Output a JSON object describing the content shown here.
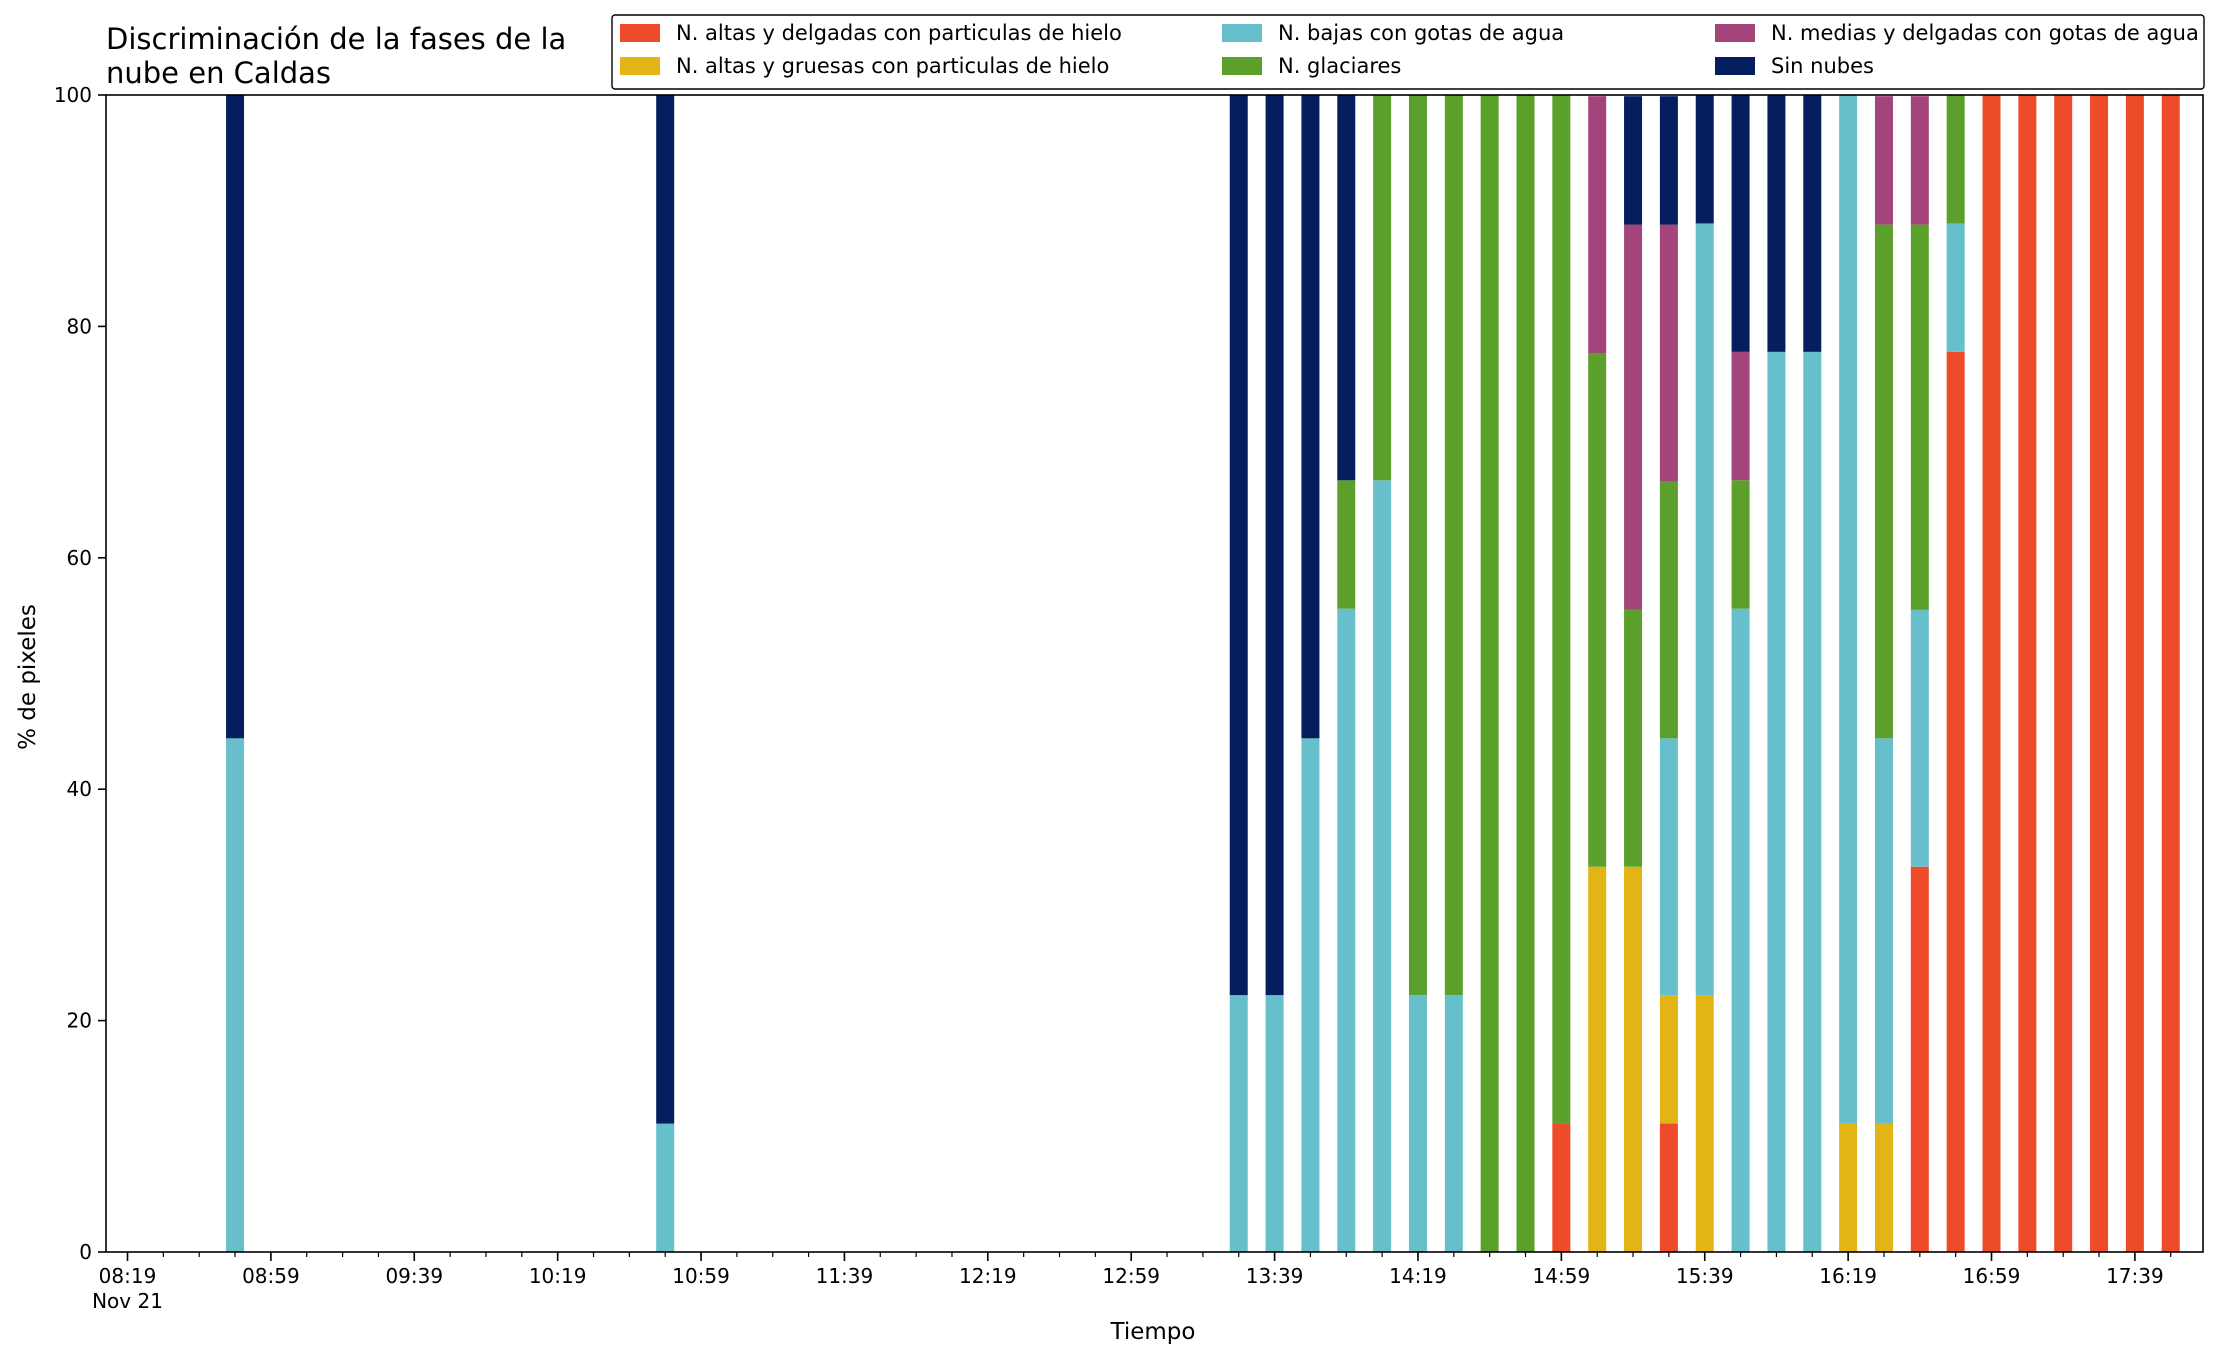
{
  "chart_data": {
    "type": "bar",
    "stacked": true,
    "title_lines": [
      "Discriminación de la fases de la",
      "nube en Caldas"
    ],
    "xlabel": "Tiempo",
    "ylabel": "% de pixeles",
    "ylim": [
      0,
      100
    ],
    "yticks": [
      "0",
      "20",
      "40",
      "60",
      "80",
      "100"
    ],
    "xlim_minutes": [
      "08:13",
      "17:58"
    ],
    "xticks": [
      {
        "time": "08:19",
        "label": "08:19",
        "sublabel": "Nov 21"
      },
      {
        "time": "08:59",
        "label": "08:59"
      },
      {
        "time": "09:39",
        "label": "09:39"
      },
      {
        "time": "10:19",
        "label": "10:19"
      },
      {
        "time": "10:59",
        "label": "10:59"
      },
      {
        "time": "11:39",
        "label": "11:39"
      },
      {
        "time": "12:19",
        "label": "12:19"
      },
      {
        "time": "12:59",
        "label": "12:59"
      },
      {
        "time": "13:39",
        "label": "13:39"
      },
      {
        "time": "14:19",
        "label": "14:19"
      },
      {
        "time": "14:59",
        "label": "14:59"
      },
      {
        "time": "15:39",
        "label": "15:39"
      },
      {
        "time": "16:19",
        "label": "16:19"
      },
      {
        "time": "16:59",
        "label": "16:59"
      },
      {
        "time": "17:39",
        "label": "17:39"
      }
    ],
    "minor_tick_step_minutes": 10,
    "grid": false,
    "legend_position": "top-right",
    "legend_columns": 3,
    "series_order": [
      "ice_thin",
      "ice_thick",
      "water_low",
      "glacier",
      "water_mid",
      "clear"
    ],
    "series": [
      {
        "key": "ice_thin",
        "name": "N. altas y delgadas con particulas de hielo",
        "color": "#ee4b2b"
      },
      {
        "key": "ice_thick",
        "name": "N. altas y gruesas con particulas de hielo",
        "color": "#e3b416"
      },
      {
        "key": "water_low",
        "name": "N. bajas con gotas de agua",
        "color": "#67bfcb"
      },
      {
        "key": "glacier",
        "name": "N. glaciares",
        "color": "#5ca02c"
      },
      {
        "key": "water_mid",
        "name": "N. medias y delgadas con gotas de agua",
        "color": "#a3457a"
      },
      {
        "key": "clear",
        "name": "Sin nubes",
        "color": "#041e5e"
      }
    ],
    "bars": [
      {
        "time": "08:49",
        "ice_thin": 0,
        "ice_thick": 0,
        "water_low": 44.4,
        "glacier": 0,
        "water_mid": 0,
        "clear": 55.6
      },
      {
        "time": "10:49",
        "ice_thin": 0,
        "ice_thick": 0,
        "water_low": 11.1,
        "glacier": 0,
        "water_mid": 0,
        "clear": 88.9
      },
      {
        "time": "13:29",
        "ice_thin": 0,
        "ice_thick": 0,
        "water_low": 22.2,
        "glacier": 0,
        "water_mid": 0,
        "clear": 77.8
      },
      {
        "time": "13:39",
        "ice_thin": 0,
        "ice_thick": 0,
        "water_low": 22.2,
        "glacier": 0,
        "water_mid": 0,
        "clear": 77.8
      },
      {
        "time": "13:49",
        "ice_thin": 0,
        "ice_thick": 0,
        "water_low": 44.4,
        "glacier": 0,
        "water_mid": 0,
        "clear": 55.6
      },
      {
        "time": "13:59",
        "ice_thin": 0,
        "ice_thick": 0,
        "water_low": 55.6,
        "glacier": 11.1,
        "water_mid": 0,
        "clear": 33.3
      },
      {
        "time": "14:09",
        "ice_thin": 0,
        "ice_thick": 0,
        "water_low": 66.7,
        "glacier": 33.3,
        "water_mid": 0,
        "clear": 0
      },
      {
        "time": "14:19",
        "ice_thin": 0,
        "ice_thick": 0,
        "water_low": 22.2,
        "glacier": 77.8,
        "water_mid": 0,
        "clear": 0
      },
      {
        "time": "14:29",
        "ice_thin": 0,
        "ice_thick": 0,
        "water_low": 22.2,
        "glacier": 77.8,
        "water_mid": 0,
        "clear": 0
      },
      {
        "time": "14:39",
        "ice_thin": 0,
        "ice_thick": 0,
        "water_low": 0,
        "glacier": 100,
        "water_mid": 0,
        "clear": 0
      },
      {
        "time": "14:49",
        "ice_thin": 0,
        "ice_thick": 0,
        "water_low": 0,
        "glacier": 100,
        "water_mid": 0,
        "clear": 0
      },
      {
        "time": "14:59",
        "ice_thin": 11.1,
        "ice_thick": 0,
        "water_low": 0,
        "glacier": 88.9,
        "water_mid": 0,
        "clear": 0
      },
      {
        "time": "15:09",
        "ice_thin": 0,
        "ice_thick": 33.3,
        "water_low": 0,
        "glacier": 44.4,
        "water_mid": 22.2,
        "clear": 0
      },
      {
        "time": "15:19",
        "ice_thin": 0,
        "ice_thick": 33.3,
        "water_low": 0,
        "glacier": 22.2,
        "water_mid": 33.3,
        "clear": 11.1
      },
      {
        "time": "15:29",
        "ice_thin": 11.1,
        "ice_thick": 11.1,
        "water_low": 22.2,
        "glacier": 22.2,
        "water_mid": 22.2,
        "clear": 11.1
      },
      {
        "time": "15:39",
        "ice_thin": 0,
        "ice_thick": 22.2,
        "water_low": 66.7,
        "glacier": 0,
        "water_mid": 0,
        "clear": 11.1
      },
      {
        "time": "15:49",
        "ice_thin": 0,
        "ice_thick": 0,
        "water_low": 55.6,
        "glacier": 11.1,
        "water_mid": 11.1,
        "clear": 22.2
      },
      {
        "time": "15:59",
        "ice_thin": 0,
        "ice_thick": 0,
        "water_low": 77.8,
        "glacier": 0,
        "water_mid": 0,
        "clear": 22.2
      },
      {
        "time": "16:09",
        "ice_thin": 0,
        "ice_thick": 0,
        "water_low": 77.8,
        "glacier": 0,
        "water_mid": 0,
        "clear": 22.2
      },
      {
        "time": "16:19",
        "ice_thin": 0,
        "ice_thick": 11.1,
        "water_low": 88.9,
        "glacier": 0,
        "water_mid": 0,
        "clear": 0
      },
      {
        "time": "16:29",
        "ice_thin": 0,
        "ice_thick": 11.1,
        "water_low": 33.3,
        "glacier": 44.4,
        "water_mid": 11.1,
        "clear": 0
      },
      {
        "time": "16:39",
        "ice_thin": 33.3,
        "ice_thick": 0,
        "water_low": 22.2,
        "glacier": 33.3,
        "water_mid": 11.1,
        "clear": 0
      },
      {
        "time": "16:49",
        "ice_thin": 77.8,
        "ice_thick": 0,
        "water_low": 11.1,
        "glacier": 11.1,
        "water_mid": 0,
        "clear": 0
      },
      {
        "time": "16:59",
        "ice_thin": 100,
        "ice_thick": 0,
        "water_low": 0,
        "glacier": 0,
        "water_mid": 0,
        "clear": 0
      },
      {
        "time": "17:09",
        "ice_thin": 100,
        "ice_thick": 0,
        "water_low": 0,
        "glacier": 0,
        "water_mid": 0,
        "clear": 0
      },
      {
        "time": "17:19",
        "ice_thin": 100,
        "ice_thick": 0,
        "water_low": 0,
        "glacier": 0,
        "water_mid": 0,
        "clear": 0
      },
      {
        "time": "17:29",
        "ice_thin": 100,
        "ice_thick": 0,
        "water_low": 0,
        "glacier": 0,
        "water_mid": 0,
        "clear": 0
      },
      {
        "time": "17:39",
        "ice_thin": 100,
        "ice_thick": 0,
        "water_low": 0,
        "glacier": 0,
        "water_mid": 0,
        "clear": 0
      },
      {
        "time": "17:49",
        "ice_thin": 100,
        "ice_thick": 0,
        "water_low": 0,
        "glacier": 0,
        "water_mid": 0,
        "clear": 0
      }
    ]
  }
}
